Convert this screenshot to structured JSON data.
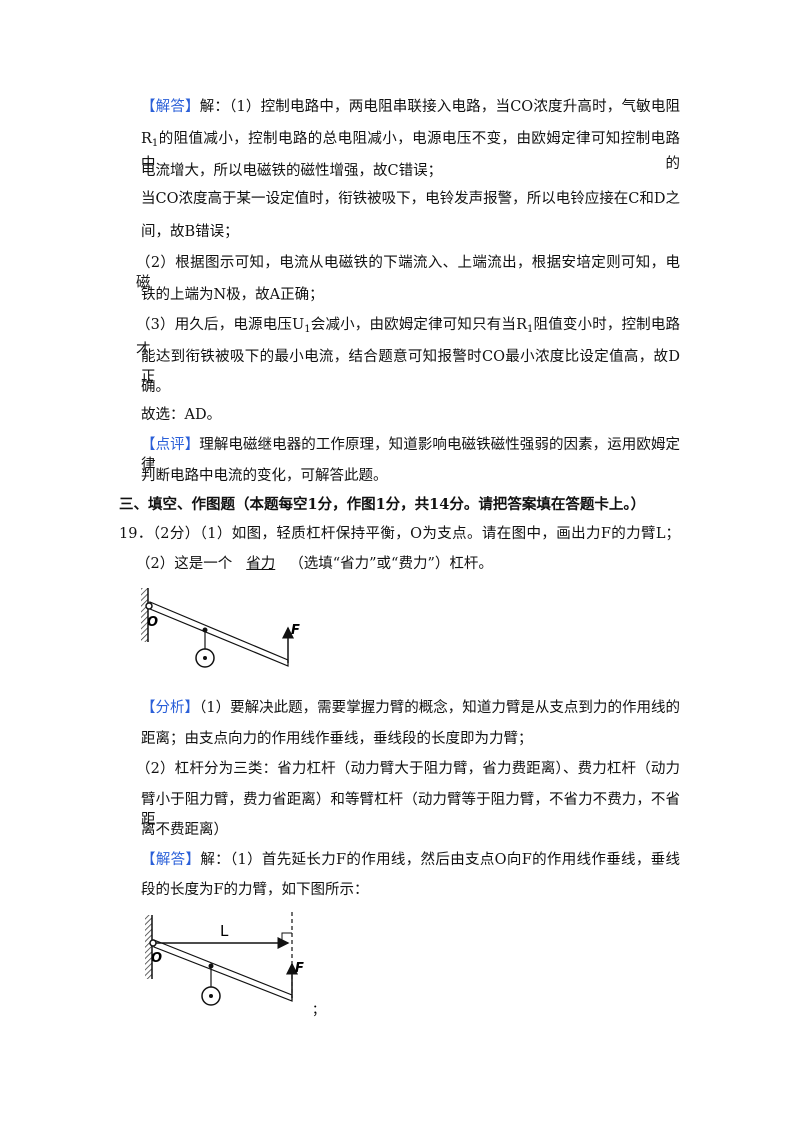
{
  "lines": [
    {
      "parts": [
        {
          "text": "【解答】",
          "style": "tag"
        },
        "解：（1）控制电路中，两电阻串联接入电路，当CO浓度升高时，气敏电阻"
      ]
    },
    {
      "parts": [
        "R",
        {
          "text": "1",
          "style": "sub"
        },
        "的阻值减小，控制电路的总电阻减小，电源电压不变，由欧姆定律可知控制电路中的"
      ]
    },
    {
      "parts": [
        "电流增大，所以电磁铁的磁性增强，故C错误；"
      ]
    },
    {
      "parts": [
        "当CO浓度高于某一设定值时，衔铁被吸下，电铃发声报警，所以电铃应接在C和D之"
      ]
    },
    {
      "parts": [
        "间，故B错误；"
      ]
    },
    {
      "parts": [
        "（2）根据图示可知，电流从电磁铁的下端流入、上端流出，根据安培定则可知，电磁"
      ]
    },
    {
      "parts": [
        "铁的上端为N极，故A正确；"
      ]
    },
    {
      "parts": [
        "（3）用久后，电源电压U",
        {
          "text": "1",
          "style": "sub"
        },
        "会减小，由欧姆定律可知只有当R",
        {
          "text": "1",
          "style": "sub"
        },
        "阻值变小时，控制电路才"
      ]
    },
    {
      "parts": [
        "能达到衔铁被吸下的最小电流，结合题意可知报警时CO最小浓度比设定值高，故D正"
      ]
    },
    {
      "parts": [
        "确。"
      ]
    },
    {
      "parts": [
        "故选：AD。"
      ]
    },
    {
      "parts": [
        {
          "text": "【点评】",
          "style": "tag"
        },
        "理解电磁继电器的工作原理，知道影响电磁铁磁性强弱的因素，运用欧姆定律"
      ]
    },
    {
      "parts": [
        "判断电路中电流的变化，可解答此题。"
      ]
    },
    {
      "parts": [
        {
          "text": "三、填空、作图题（本题每空1分，作图1分，共14分。请把答案填在答题卡上。）",
          "style": "bold"
        }
      ]
    },
    {
      "parts": [
        "19．（2分）（1）如图，轻质杠杆保持平衡，O为支点。请在图中，画出力F的力臂L；"
      ]
    },
    {
      "parts": [
        "（2）这是一个",
        {
          "text": "省力",
          "style": "blank"
        },
        "（选填“省力”或“费力”）杠杆。"
      ]
    },
    {
      "parts": [
        {
          "text": "【分析】",
          "style": "tag"
        },
        "（1）要解决此题，需要掌握力臂的概念，知道力臂是从支点到力的作用线的"
      ]
    },
    {
      "parts": [
        "距离；由支点向力的作用线作垂线，垂线段的长度即为力臂；"
      ]
    },
    {
      "parts": [
        "（2）杠杆分为三类：省力杠杆（动力臂大于阻力臂，省力费距离）、费力杠杆（动力"
      ]
    },
    {
      "parts": [
        "臂小于阻力臂，费力省距离）和等臂杠杆（动力臂等于阻力臂，不省力不费力，不省距"
      ]
    },
    {
      "parts": [
        "离不费距离）"
      ]
    },
    {
      "parts": [
        {
          "text": "【解答】",
          "style": "tag"
        },
        "解：（1）首先延长力F的作用线，然后由支点O向F的作用线作垂线，垂线"
      ]
    },
    {
      "parts": [
        "段的长度为F的力臂，如下图所示："
      ]
    }
  ],
  "figures": [
    {
      "labels": [
        "O",
        "F"
      ]
    },
    {
      "labels": [
        "L",
        "O",
        "F"
      ]
    }
  ],
  "trailing": "；"
}
